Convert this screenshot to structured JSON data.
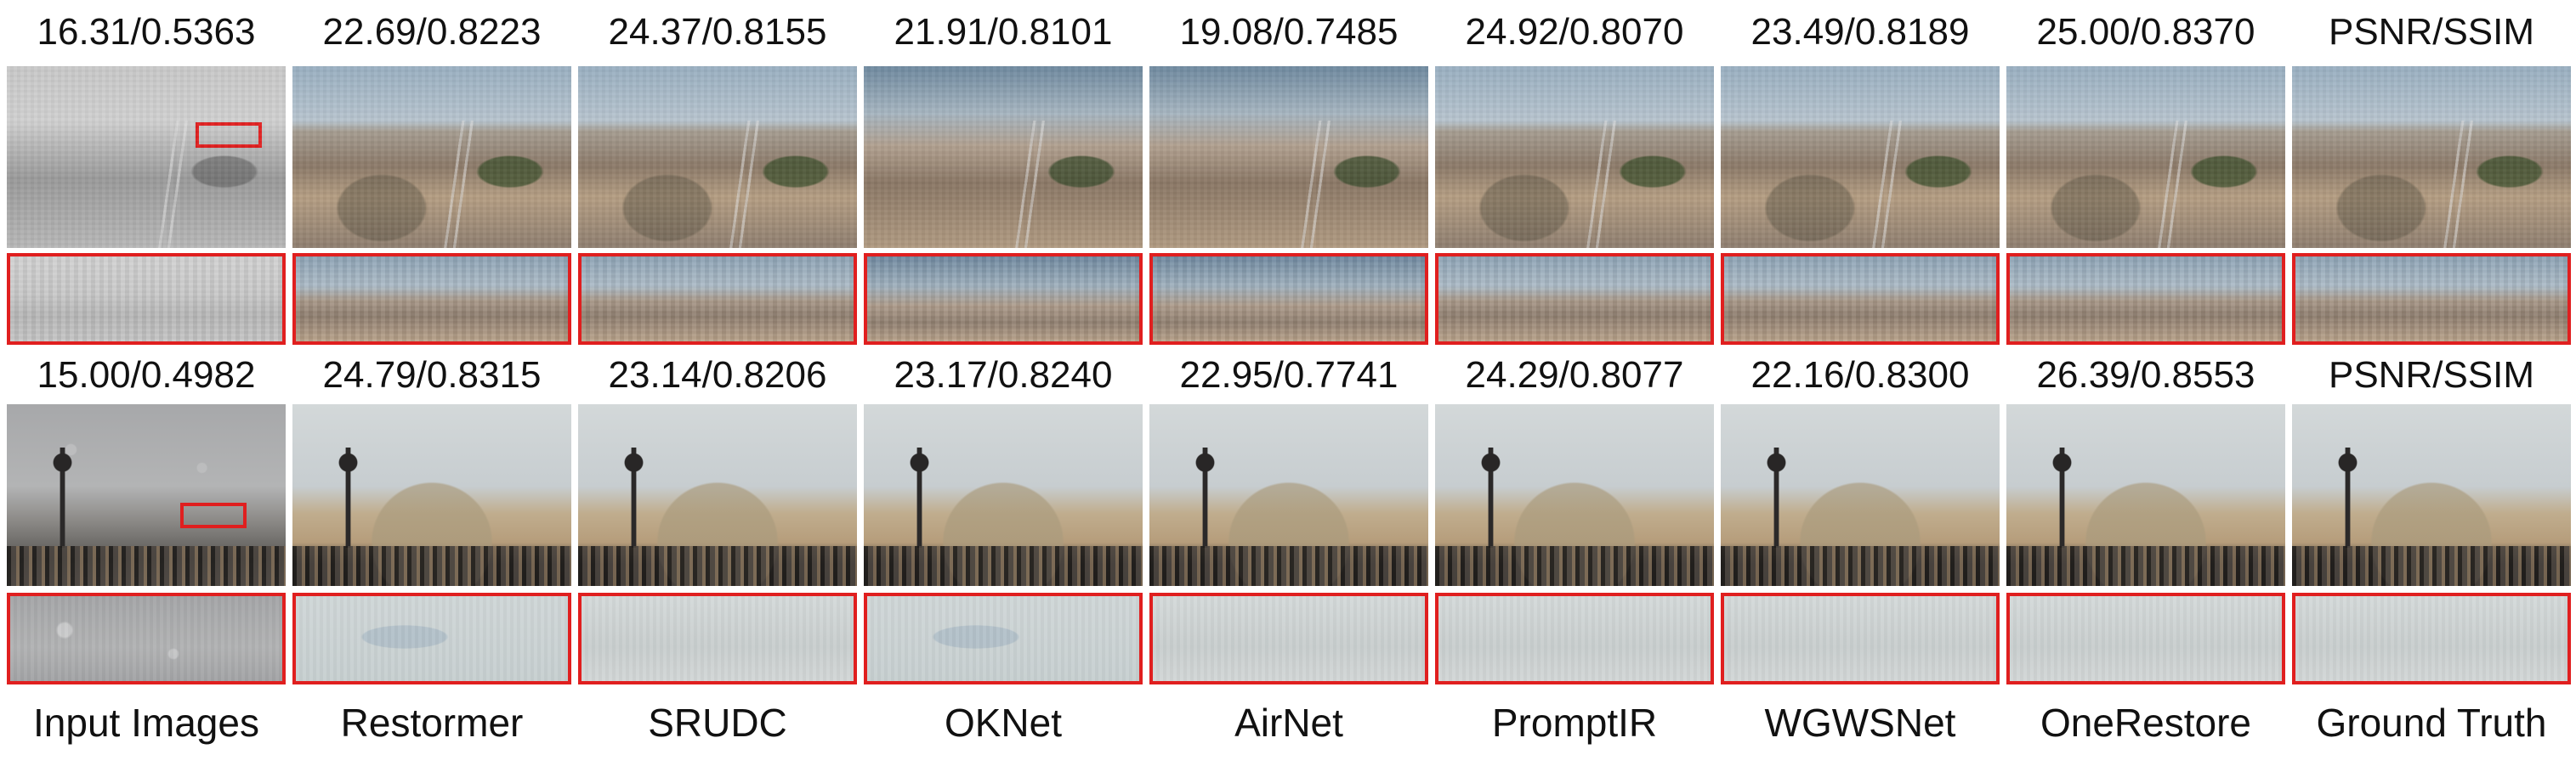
{
  "labels": [
    "Input Images",
    "Restormer",
    "SRUDC",
    "OKNet",
    "AirNet",
    "PromptIR",
    "WGWSNet",
    "OneRestore",
    "Ground Truth"
  ],
  "metrics_row_1": [
    "16.31/0.5363",
    "22.69/0.8223",
    "24.37/0.8155",
    "21.91/0.8101",
    "19.08/0.7485",
    "24.92/0.8070",
    "23.49/0.8189",
    "25.00/0.8370",
    "PSNR/SSIM"
  ],
  "metrics_row_2": [
    "15.00/0.4982",
    "24.79/0.8315",
    "23.14/0.8206",
    "23.17/0.8240",
    "22.95/0.7741",
    "24.29/0.8077",
    "22.16/0.8300",
    "26.39/0.8553",
    "PSNR/SSIM"
  ],
  "colors": {
    "crop_border": "#e01f1f",
    "text": "#111111"
  }
}
